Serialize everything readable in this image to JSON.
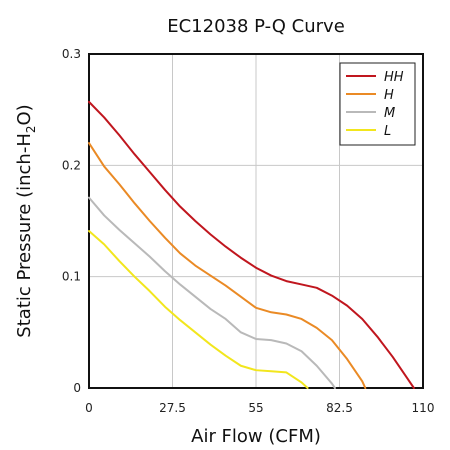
{
  "chart_data": {
    "type": "line",
    "title": "EC12038 P-Q Curve",
    "xlabel": "Air Flow (CFM)",
    "ylabel": {
      "prefix": "Static Pressure (inch-H",
      "sub": "2",
      "suffix": "O)"
    },
    "xlim": [
      0,
      110
    ],
    "ylim": [
      0,
      0.3
    ],
    "x_ticks": [
      0,
      27.5,
      55,
      82.5,
      110
    ],
    "x_tick_labels": [
      "0",
      "27.5",
      "55",
      "82.5",
      "110"
    ],
    "y_ticks": [
      0,
      0.1,
      0.2,
      0.3
    ],
    "y_tick_labels": [
      "0",
      "0.1",
      "0.2",
      "0.3"
    ],
    "grid": true,
    "legend_position": "top-right",
    "series": [
      {
        "name": "HH",
        "color": "#c0161e",
        "x": [
          0,
          5,
          10,
          15,
          20,
          25,
          30,
          35,
          40,
          45,
          50,
          55,
          60,
          65,
          70,
          75,
          80,
          85,
          90,
          95,
          100,
          105,
          107
        ],
        "y": [
          0.257,
          0.243,
          0.227,
          0.21,
          0.194,
          0.178,
          0.163,
          0.15,
          0.138,
          0.127,
          0.117,
          0.108,
          0.101,
          0.096,
          0.093,
          0.09,
          0.083,
          0.074,
          0.062,
          0.046,
          0.028,
          0.008,
          0.0
        ]
      },
      {
        "name": "H",
        "color": "#ea8a25",
        "x": [
          0,
          5,
          10,
          15,
          20,
          25,
          30,
          35,
          40,
          45,
          50,
          55,
          60,
          65,
          70,
          75,
          80,
          85,
          90,
          91
        ],
        "y": [
          0.22,
          0.199,
          0.183,
          0.166,
          0.15,
          0.135,
          0.121,
          0.11,
          0.101,
          0.092,
          0.082,
          0.072,
          0.068,
          0.066,
          0.062,
          0.054,
          0.043,
          0.026,
          0.006,
          0.0
        ]
      },
      {
        "name": "M",
        "color": "#b9b9b9",
        "x": [
          0,
          5,
          10,
          15,
          20,
          25,
          30,
          35,
          40,
          45,
          50,
          55,
          60,
          65,
          70,
          75,
          80,
          81
        ],
        "y": [
          0.171,
          0.155,
          0.142,
          0.13,
          0.118,
          0.105,
          0.093,
          0.082,
          0.071,
          0.062,
          0.05,
          0.044,
          0.043,
          0.04,
          0.033,
          0.02,
          0.004,
          0.0
        ]
      },
      {
        "name": "L",
        "color": "#f2e61d",
        "x": [
          0,
          5,
          10,
          15,
          20,
          25,
          30,
          35,
          40,
          45,
          50,
          55,
          60,
          65,
          70,
          72
        ],
        "y": [
          0.141,
          0.129,
          0.114,
          0.1,
          0.087,
          0.073,
          0.061,
          0.05,
          0.039,
          0.029,
          0.02,
          0.016,
          0.015,
          0.014,
          0.005,
          0.0
        ]
      }
    ]
  }
}
